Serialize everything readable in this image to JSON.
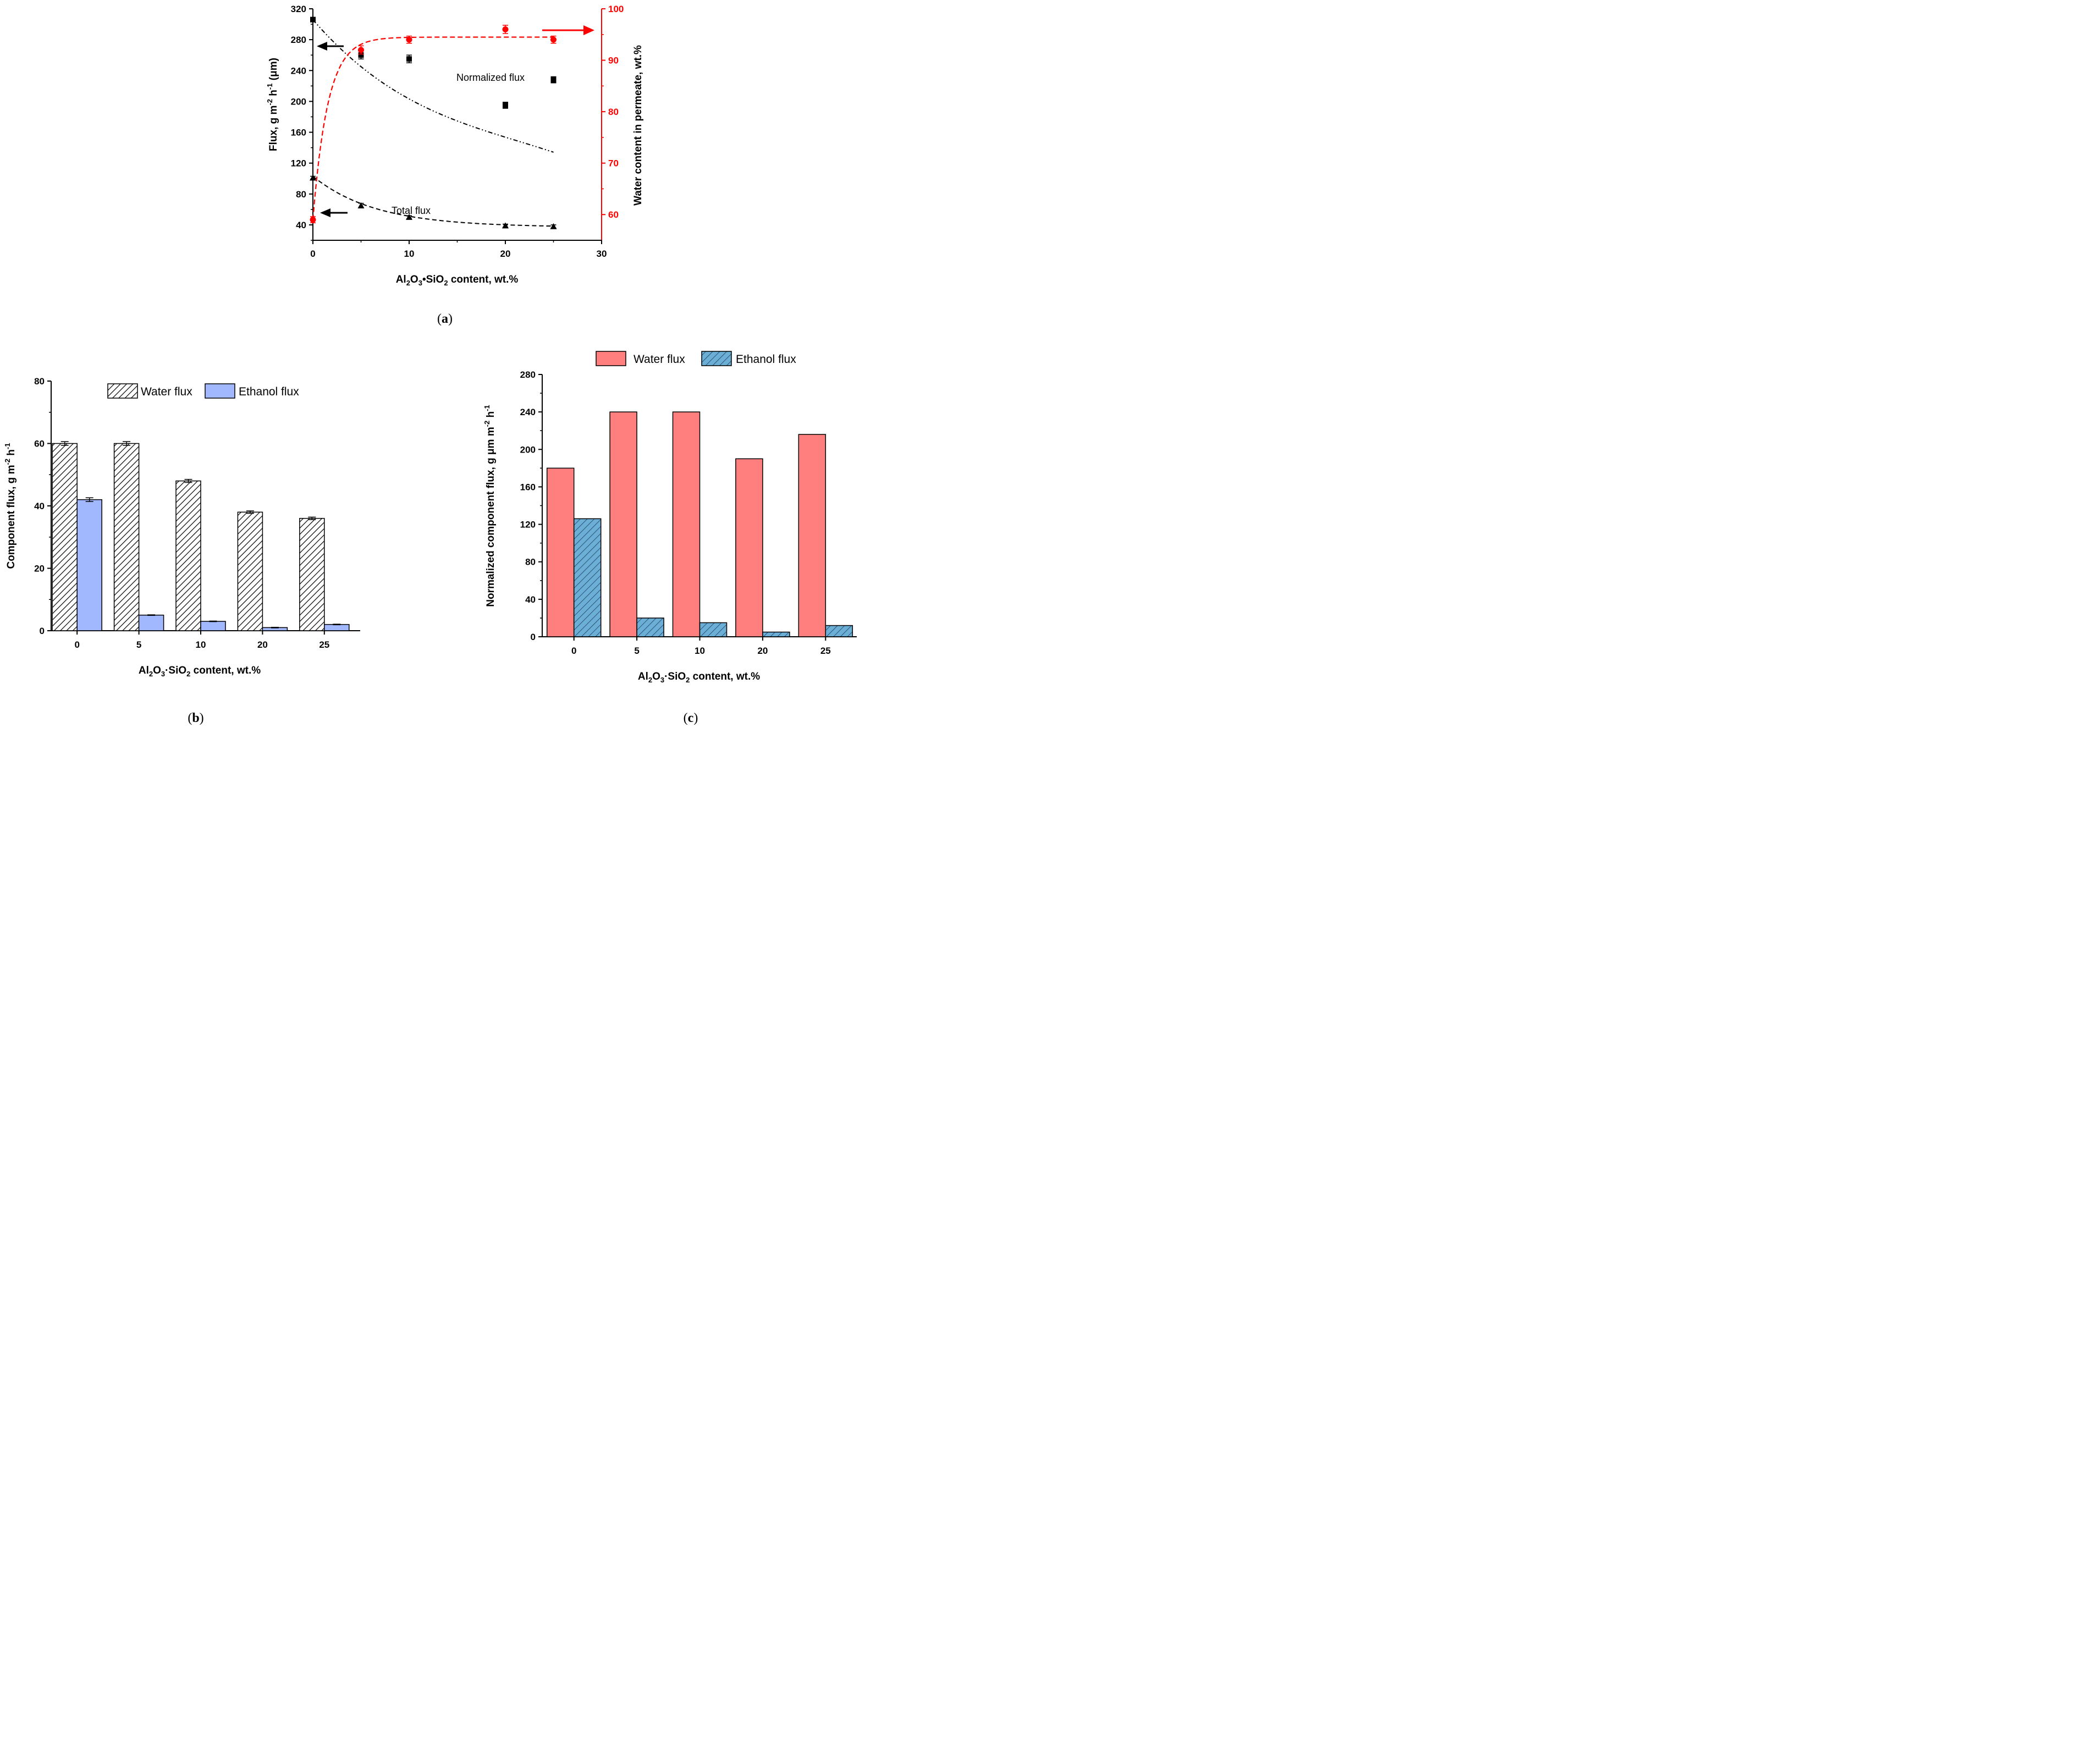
{
  "colors": {
    "black": "#000000",
    "red": "#ff0000",
    "salmon": "#ff7f7f",
    "light_blue": "#a1b8ff",
    "steel_blue": "#6baed6"
  },
  "panel_labels": {
    "a": [
      "(",
      "a",
      ")"
    ],
    "b": [
      "(",
      "b",
      ")"
    ],
    "c": [
      "(",
      "c",
      ")"
    ]
  },
  "chart_data": [
    {
      "id": "a",
      "type": "scatter",
      "xlabel": {
        "pre": "Al",
        "s1": "2",
        "mid": "O",
        "s2": "3",
        "mid2": "•SiO",
        "s3": "2",
        "post": " content, wt.%"
      },
      "ylabel": {
        "pre": "Flux, g m",
        "sup1": "-2",
        "mid": " h",
        "sup2": "-1",
        "post": " (μm)"
      },
      "y2label": "Water content in permeate, wt.%",
      "xlim": [
        0,
        30
      ],
      "ylim": [
        20,
        320
      ],
      "y2lim": [
        55,
        100
      ],
      "x_ticks": [
        "0",
        "10",
        "20",
        "30"
      ],
      "y_ticks": [
        "40",
        "80",
        "120",
        "160",
        "200",
        "240",
        "280",
        "320"
      ],
      "y2_ticks": [
        "60",
        "70",
        "80",
        "90",
        "100"
      ],
      "annotations": {
        "normalized": "Normalized flux",
        "total": "Total flux"
      },
      "series": [
        {
          "name": "Normalized flux",
          "axis": "left",
          "marker": "square",
          "color": "#000000",
          "x": [
            0,
            5,
            10,
            20,
            25
          ],
          "y": [
            306,
            260,
            255,
            195,
            228
          ],
          "err": [
            3,
            5,
            5,
            4,
            4
          ],
          "fit": "dash-dot-dot"
        },
        {
          "name": "Total flux",
          "axis": "left",
          "marker": "triangle",
          "color": "#000000",
          "x": [
            0,
            5,
            10,
            20,
            25
          ],
          "y": [
            101,
            65,
            50,
            39,
            38
          ],
          "err": [
            2,
            3,
            2,
            2,
            2
          ],
          "fit": "dashed"
        },
        {
          "axis": "right",
          "marker": "circle",
          "color": "#ff0000",
          "x": [
            0,
            5,
            10,
            20,
            25
          ],
          "y": [
            59,
            92,
            94,
            96,
            94
          ],
          "err": [
            0.6,
            0.8,
            0.7,
            0.8,
            0.7
          ],
          "fit": "dashed"
        }
      ]
    },
    {
      "id": "b",
      "type": "bar",
      "categories": [
        "0",
        "5",
        "10",
        "20",
        "25"
      ],
      "xlabel": {
        "pre": "Al",
        "s1": "2",
        "mid": "O",
        "s2": "3",
        "mid2": "·SiO",
        "s3": "2",
        "post": " content, wt.%"
      },
      "ylabel": {
        "pre": "Component flux, g m",
        "sup1": "-2",
        "mid": " h",
        "sup2": "-1"
      },
      "ylim": [
        0,
        80
      ],
      "y_ticks": [
        "0",
        "20",
        "40",
        "60",
        "80"
      ],
      "legend_position": "top-center",
      "series": [
        {
          "name": "Water flux",
          "fill": "hatched",
          "values": [
            60,
            60,
            48,
            38,
            36
          ],
          "err": [
            0.6,
            0.6,
            0.5,
            0.4,
            0.4
          ]
        },
        {
          "name": "Ethanol flux",
          "fill": "#a1b8ff",
          "values": [
            42,
            5,
            3,
            1,
            2
          ],
          "err": [
            0.6,
            0.1,
            0.1,
            0.1,
            0.1
          ]
        }
      ]
    },
    {
      "id": "c",
      "type": "bar",
      "categories": [
        "0",
        "5",
        "10",
        "20",
        "25"
      ],
      "xlabel": {
        "pre": "Al",
        "s1": "2",
        "mid": "O",
        "s2": "3",
        "mid2": "·SiO",
        "s3": "2",
        "post": " content, wt.%"
      },
      "ylabel": {
        "pre": "Normalized component flux, g μm m",
        "sup1": "-2",
        "mid": " h",
        "sup2": "-1"
      },
      "ylim": [
        0,
        280
      ],
      "y_ticks": [
        "0",
        "40",
        "80",
        "120",
        "160",
        "200",
        "240",
        "280"
      ],
      "legend_position": "top-center",
      "series": [
        {
          "name": "Water flux",
          "fill": "#ff7f7f",
          "values": [
            180,
            240,
            240,
            190,
            216
          ]
        },
        {
          "name": "Ethanol flux",
          "fill": "hatched-blue",
          "values": [
            126,
            20,
            15,
            5,
            12
          ]
        }
      ]
    }
  ]
}
